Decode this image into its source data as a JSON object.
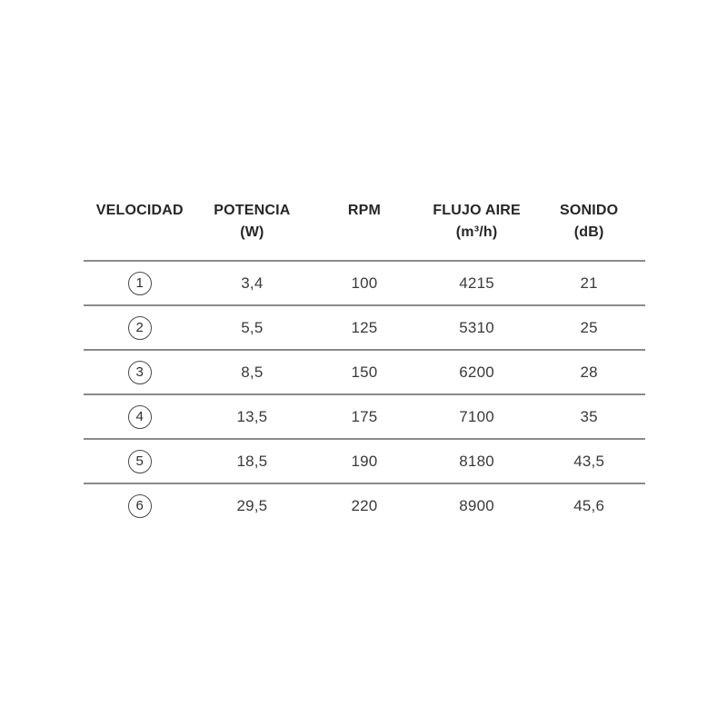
{
  "table": {
    "columns": [
      {
        "label": "VELOCIDAD",
        "unit": ""
      },
      {
        "label": "POTENCIA",
        "unit": "(W)"
      },
      {
        "label": "RPM",
        "unit": ""
      },
      {
        "label": "FLUJO AIRE",
        "unit": "(m³/h)"
      },
      {
        "label": "SONIDO",
        "unit": "(dB)"
      }
    ],
    "rows": [
      {
        "speed": "1",
        "values": [
          "3,4",
          "100",
          "4215",
          "21"
        ]
      },
      {
        "speed": "2",
        "values": [
          "5,5",
          "125",
          "5310",
          "25"
        ]
      },
      {
        "speed": "3",
        "values": [
          "8,5",
          "150",
          "6200",
          "28"
        ]
      },
      {
        "speed": "4",
        "values": [
          "13,5",
          "175",
          "7100",
          "35"
        ]
      },
      {
        "speed": "5",
        "values": [
          "18,5",
          "190",
          "8180",
          "43,5"
        ]
      },
      {
        "speed": "6",
        "values": [
          "29,5",
          "220",
          "8900",
          "45,6"
        ]
      }
    ]
  },
  "colors": {
    "background": "#ffffff",
    "text": "#2e2e2e",
    "rule": "#8a8a8a"
  }
}
